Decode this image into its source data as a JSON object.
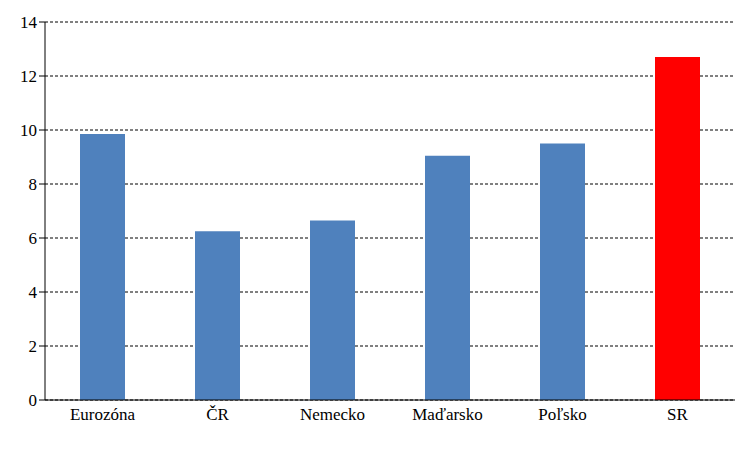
{
  "chart_data": {
    "type": "bar",
    "categories": [
      "Eurozóna",
      "ČR",
      "Nemecko",
      "Maďarsko",
      "Poľsko",
      "SR"
    ],
    "values": [
      9.85,
      6.25,
      6.65,
      9.05,
      9.5,
      12.7
    ],
    "colors": [
      "#4f81bd",
      "#4f81bd",
      "#4f81bd",
      "#4f81bd",
      "#4f81bd",
      "#ff0000"
    ],
    "ylim": [
      0,
      14
    ],
    "yticks": [
      0,
      2,
      4,
      6,
      8,
      10,
      12,
      14
    ],
    "grid": true
  }
}
